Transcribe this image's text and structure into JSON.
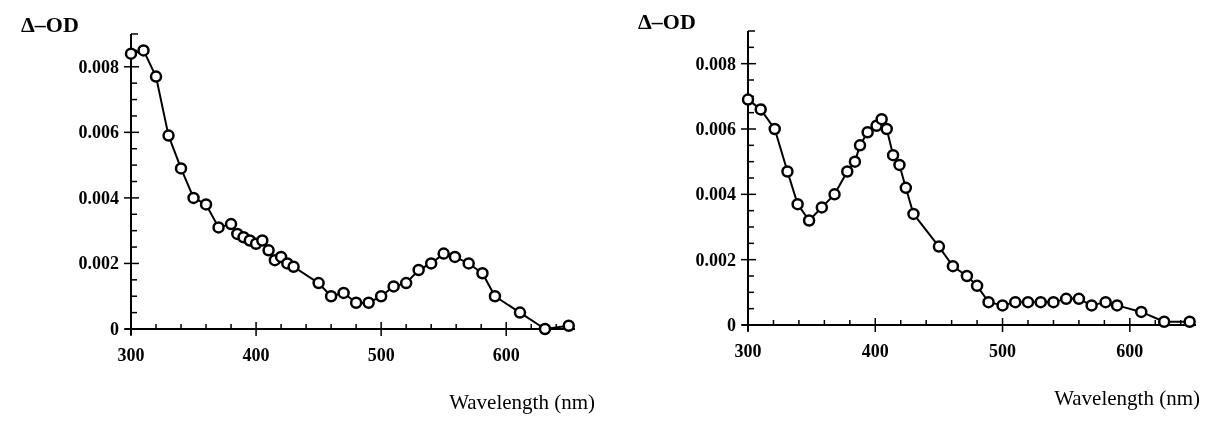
{
  "chart_data": [
    {
      "type": "line",
      "ylabel": "Δ–OD",
      "xlabel": "Wavelength (nm)",
      "marker": "circle",
      "line_style": "solid",
      "grid": false,
      "xlim": [
        300,
        655
      ],
      "ylim": [
        0,
        0.009
      ],
      "xticks": [
        300,
        {
          "value": 320,
          "label": null
        },
        {
          "value": 340,
          "label": null
        },
        {
          "value": 360,
          "label": null
        },
        {
          "value": 380,
          "label": null
        },
        400,
        {
          "value": 420,
          "label": null
        },
        {
          "value": 440,
          "label": null
        },
        {
          "value": 460,
          "label": null
        },
        {
          "value": 480,
          "label": null
        },
        500,
        {
          "value": 520,
          "label": null
        },
        {
          "value": 540,
          "label": null
        },
        {
          "value": 560,
          "label": null
        },
        {
          "value": 580,
          "label": null
        },
        600,
        {
          "value": 620,
          "label": null
        },
        {
          "value": 640,
          "label": null
        }
      ],
      "yticks": [
        0,
        {
          "value": 0.0005,
          "label": null
        },
        {
          "value": 0.001,
          "label": null
        },
        {
          "value": 0.0015,
          "label": null
        },
        0.002,
        {
          "value": 0.0025,
          "label": null
        },
        {
          "value": 0.003,
          "label": null
        },
        {
          "value": 0.0035,
          "label": null
        },
        0.004,
        {
          "value": 0.0045,
          "label": null
        },
        {
          "value": 0.005,
          "label": null
        },
        {
          "value": 0.0055,
          "label": null
        },
        0.006,
        {
          "value": 0.0065,
          "label": null
        },
        {
          "value": 0.007,
          "label": null
        },
        {
          "value": 0.0075,
          "label": null
        },
        0.008,
        {
          "value": 0.0085,
          "label": null
        }
      ],
      "series": [
        {
          "color": "#000000",
          "x": [
            300,
            310,
            320,
            330,
            340,
            350,
            360,
            370,
            380,
            385,
            390,
            395,
            400,
            405,
            410,
            415,
            420,
            425,
            430,
            450,
            460,
            470,
            480,
            490,
            500,
            510,
            520,
            530,
            540,
            550,
            559,
            570,
            581,
            591,
            611,
            631,
            650
          ],
          "values": [
            0.0084,
            0.0085,
            0.0077,
            0.0059,
            0.0049,
            0.004,
            0.0038,
            0.0031,
            0.0032,
            0.0029,
            0.0028,
            0.0027,
            0.0026,
            0.0027,
            0.0024,
            0.0021,
            0.0022,
            0.002,
            0.0019,
            0.0014,
            0.001,
            0.0011,
            0.0008,
            0.0008,
            0.001,
            0.0013,
            0.0014,
            0.0018,
            0.002,
            0.0023,
            0.0022,
            0.002,
            0.0017,
            0.001,
            0.0005,
            0.0,
            0.0001
          ]
        }
      ]
    },
    {
      "type": "line",
      "ylabel": "Δ–OD",
      "xlabel": "Wavelength (nm)",
      "marker": "circle",
      "line_style": "solid",
      "grid": false,
      "xlim": [
        300,
        652
      ],
      "ylim": [
        0,
        0.009
      ],
      "xticks": [
        300,
        {
          "value": 320,
          "label": null
        },
        {
          "value": 340,
          "label": null
        },
        {
          "value": 360,
          "label": null
        },
        {
          "value": 380,
          "label": null
        },
        400,
        {
          "value": 420,
          "label": null
        },
        {
          "value": 440,
          "label": null
        },
        {
          "value": 460,
          "label": null
        },
        {
          "value": 480,
          "label": null
        },
        500,
        {
          "value": 520,
          "label": null
        },
        {
          "value": 540,
          "label": null
        },
        {
          "value": 560,
          "label": null
        },
        {
          "value": 580,
          "label": null
        },
        600,
        {
          "value": 620,
          "label": null
        },
        {
          "value": 640,
          "label": null
        }
      ],
      "yticks": [
        0,
        {
          "value": 0.0005,
          "label": null
        },
        {
          "value": 0.001,
          "label": null
        },
        {
          "value": 0.0015,
          "label": null
        },
        0.002,
        {
          "value": 0.0025,
          "label": null
        },
        {
          "value": 0.003,
          "label": null
        },
        {
          "value": 0.0035,
          "label": null
        },
        0.004,
        {
          "value": 0.0045,
          "label": null
        },
        {
          "value": 0.005,
          "label": null
        },
        {
          "value": 0.0055,
          "label": null
        },
        0.006,
        {
          "value": 0.0065,
          "label": null
        },
        {
          "value": 0.007,
          "label": null
        },
        {
          "value": 0.0075,
          "label": null
        },
        0.008,
        {
          "value": 0.0085,
          "label": null
        }
      ],
      "series": [
        {
          "color": "#000000",
          "x": [
            300,
            310,
            321,
            331,
            339,
            348,
            358,
            368,
            378,
            384,
            388,
            394,
            401,
            405,
            409,
            414,
            419,
            424,
            430,
            450,
            461,
            472,
            480,
            489,
            500,
            510,
            520,
            530,
            540,
            550,
            560,
            570,
            581,
            590,
            609,
            627,
            647
          ],
          "values": [
            0.0069,
            0.0066,
            0.006,
            0.0047,
            0.0037,
            0.0032,
            0.0036,
            0.004,
            0.0047,
            0.005,
            0.0055,
            0.0059,
            0.0061,
            0.0063,
            0.006,
            0.0052,
            0.0049,
            0.0042,
            0.0034,
            0.0024,
            0.0018,
            0.0015,
            0.0012,
            0.0007,
            0.0006,
            0.0007,
            0.0007,
            0.0007,
            0.0007,
            0.0008,
            0.0008,
            0.0006,
            0.0007,
            0.0006,
            0.0004,
            0.0001,
            0.0001
          ]
        }
      ]
    }
  ]
}
